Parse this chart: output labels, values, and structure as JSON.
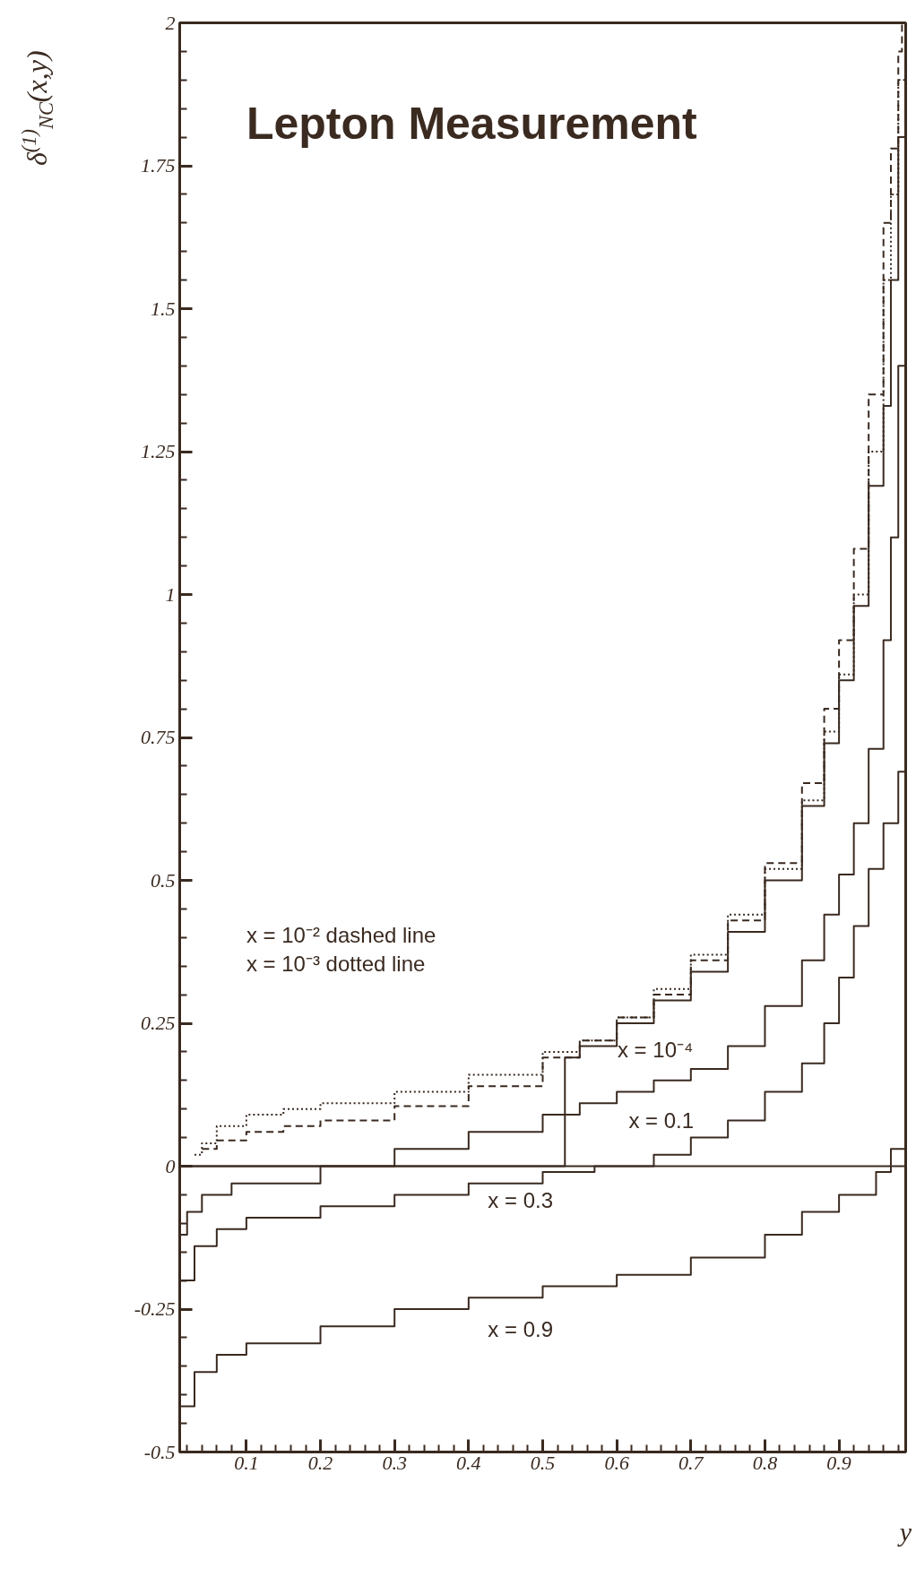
{
  "chart_data": {
    "type": "step",
    "title": "Lepton Measurement",
    "xlabel": "y",
    "ylabel": "δ$^{(1)}$$_{NC}$(x,y)",
    "xlim": [
      0.01,
      0.99
    ],
    "ylim": [
      -0.5,
      2
    ],
    "xticks": [
      0.1,
      0.2,
      0.3,
      0.4,
      0.5,
      0.6,
      0.7,
      0.8,
      0.9
    ],
    "yticks": [
      -0.5,
      -0.25,
      0,
      0.25,
      0.5,
      0.75,
      1,
      1.25,
      1.5,
      1.75,
      2
    ],
    "grid": false,
    "marker": "none",
    "series": [
      {
        "color": "#3a2a20",
        "line_style": "dashed",
        "x": [
          0.04,
          0.06,
          0.1,
          0.15,
          0.2,
          0.3,
          0.4,
          0.5,
          0.55,
          0.6,
          0.65,
          0.7,
          0.75,
          0.8,
          0.85,
          0.88,
          0.9,
          0.92,
          0.94,
          0.96,
          0.97,
          0.98,
          0.985
        ],
        "values": [
          0.03,
          0.045,
          0.06,
          0.07,
          0.08,
          0.105,
          0.14,
          0.19,
          0.22,
          0.26,
          0.3,
          0.36,
          0.43,
          0.53,
          0.67,
          0.8,
          0.92,
          1.08,
          1.35,
          1.65,
          1.78,
          1.95,
          2.0
        ]
      },
      {
        "color": "#3a2a20",
        "line_style": "dotted",
        "x": [
          0.03,
          0.04,
          0.06,
          0.1,
          0.15,
          0.2,
          0.3,
          0.4,
          0.5,
          0.55,
          0.6,
          0.65,
          0.7,
          0.75,
          0.8,
          0.85,
          0.88,
          0.9,
          0.92,
          0.94,
          0.96,
          0.97,
          0.98,
          0.99
        ],
        "values": [
          0.02,
          0.04,
          0.07,
          0.09,
          0.1,
          0.11,
          0.13,
          0.16,
          0.2,
          0.22,
          0.26,
          0.31,
          0.37,
          0.44,
          0.52,
          0.64,
          0.76,
          0.86,
          1.0,
          1.25,
          1.55,
          1.7,
          1.9,
          2.0
        ]
      },
      {
        "color": "#3a2a20",
        "line_style": "solid",
        "x": [
          0.01,
          0.53,
          0.55,
          0.6,
          0.65,
          0.7,
          0.75,
          0.8,
          0.85,
          0.88,
          0.9,
          0.92,
          0.94,
          0.96,
          0.97,
          0.98,
          0.99
        ],
        "values": [
          0,
          0.19,
          0.21,
          0.25,
          0.29,
          0.34,
          0.41,
          0.5,
          0.63,
          0.74,
          0.85,
          0.98,
          1.19,
          1.33,
          1.55,
          1.8,
          1.8
        ]
      },
      {
        "color": "#3a2a20",
        "line_style": "solid",
        "x": [
          0.01,
          0.02,
          0.04,
          0.08,
          0.2,
          0.3,
          0.4,
          0.5,
          0.55,
          0.6,
          0.65,
          0.7,
          0.75,
          0.8,
          0.85,
          0.88,
          0.9,
          0.92,
          0.94,
          0.96,
          0.97,
          0.98,
          0.99
        ],
        "values": [
          -0.12,
          -0.08,
          -0.05,
          -0.03,
          0,
          0.03,
          0.06,
          0.09,
          0.11,
          0.13,
          0.15,
          0.17,
          0.21,
          0.28,
          0.36,
          0.44,
          0.51,
          0.6,
          0.73,
          0.92,
          1.1,
          1.4,
          1.8
        ]
      },
      {
        "color": "#3a2a20",
        "line_style": "solid",
        "x": [
          0.01,
          0.03,
          0.06,
          0.1,
          0.2,
          0.3,
          0.4,
          0.5,
          0.57,
          0.65,
          0.7,
          0.75,
          0.8,
          0.85,
          0.88,
          0.9,
          0.92,
          0.94,
          0.96,
          0.98,
          0.99
        ],
        "values": [
          -0.2,
          -0.14,
          -0.11,
          -0.09,
          -0.07,
          -0.05,
          -0.03,
          -0.01,
          0,
          0.02,
          0.05,
          0.08,
          0.13,
          0.18,
          0.25,
          0.33,
          0.42,
          0.52,
          0.6,
          0.69,
          0.69
        ]
      },
      {
        "color": "#3a2a20",
        "line_style": "solid",
        "x": [
          0.01,
          0.03,
          0.06,
          0.1,
          0.2,
          0.3,
          0.4,
          0.5,
          0.6,
          0.7,
          0.8,
          0.85,
          0.9,
          0.95,
          0.97,
          0.99
        ],
        "values": [
          -0.42,
          -0.36,
          -0.33,
          -0.31,
          -0.28,
          -0.25,
          -0.23,
          -0.21,
          -0.19,
          -0.16,
          -0.12,
          -0.08,
          -0.05,
          -0.01,
          0.03,
          0.09
        ]
      }
    ],
    "ref_lines": [
      {
        "axis": "y",
        "value": 0,
        "color": "#3a2a20"
      }
    ],
    "annotations": [
      "x = 10⁻²   dashed line",
      "x = 10⁻³   dotted line",
      "x = 10⁻⁴",
      "x = 0.1",
      "x = 0.3",
      "x = 0.9"
    ]
  }
}
